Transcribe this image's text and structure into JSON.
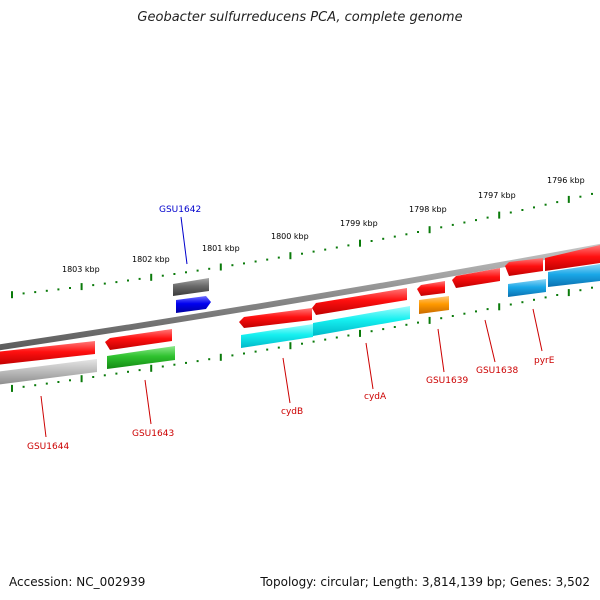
{
  "title": "Geobacter sulfurreducens PCA, complete genome",
  "scale_labels": [
    "1796 kbp",
    "1797 kbp",
    "1798 kbp",
    "1799 kbp",
    "1800 kbp",
    "1801 kbp",
    "1802 kbp",
    "1803 kbp"
  ],
  "genes": {
    "gsu1642": "GSU1642",
    "gsu1644": "GSU1644",
    "gsu1643": "GSU1643",
    "cydB": "cydB",
    "cydA": "cydA",
    "gsu1639": "GSU1639",
    "gsu1638": "GSU1638",
    "pyrE": "pyrE"
  },
  "footer": {
    "accession": "Accession: NC_002939",
    "topology": "Topology: circular; Length: 3,814,139 bp; Genes: 3,502"
  },
  "colors": {
    "forward_gene": "#ff1a1a",
    "cyan_gene": "#1ef0f0",
    "blue_gene": "#1ea8e8",
    "green_gene": "#33c433",
    "orange_gene": "#ff9900",
    "gray_gene": "#b8b8b8",
    "dark_gray_gene": "#6e6e6e",
    "navy_gene": "#0000ee",
    "backbone": "#8a8a8a",
    "ticks": "#0a7a0a",
    "label_red": "#cc0000",
    "label_blue": "#0000cc"
  }
}
